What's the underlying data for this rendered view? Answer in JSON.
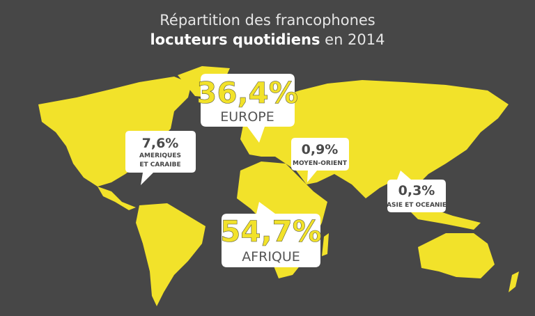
{
  "title": {
    "line1": "Répartition des francophones",
    "line2_bold": "locuteurs quotidiens",
    "line2_rest": "en 2014"
  },
  "regions": [
    {
      "share": "36,4%",
      "name": "EUROPE"
    },
    {
      "share": "7,6%",
      "name": "AMERIQUES",
      "name2": "ET CARAIBE"
    },
    {
      "share": "0,9%",
      "name": "MOYEN-ORIENT"
    },
    {
      "share": "0,3%",
      "name": "ASIE ET OCEANIE"
    },
    {
      "share": "54,7%",
      "name": "AFRIQUE"
    }
  ]
}
